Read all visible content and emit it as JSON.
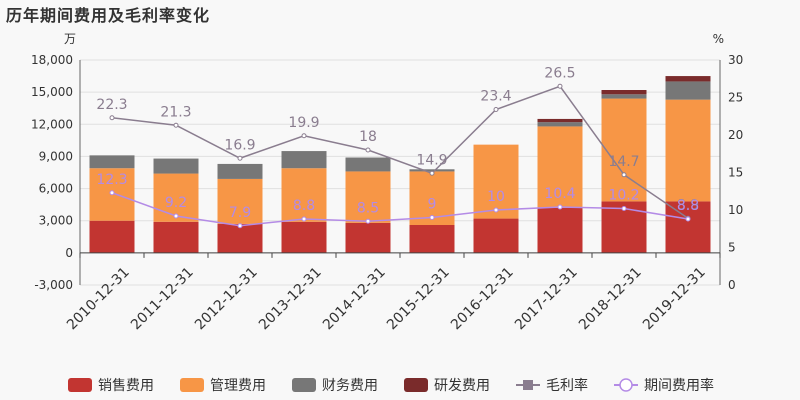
{
  "title": "历年期间费用及毛利率变化",
  "chart_data": {
    "type": "bar",
    "subtype": "stacked-bar-with-lines",
    "categories": [
      "2010-12-31",
      "2011-12-31",
      "2012-12-31",
      "2013-12-31",
      "2014-12-31",
      "2015-12-31",
      "2016-12-31",
      "2017-12-31",
      "2018-12-31",
      "2019-12-31"
    ],
    "y_left": {
      "unit": "万",
      "ylim": [
        -3000,
        18000
      ],
      "ticks": [
        -3000,
        0,
        3000,
        6000,
        9000,
        12000,
        15000,
        18000
      ]
    },
    "y_right": {
      "unit": "%",
      "ylim": [
        0,
        30
      ],
      "ticks": [
        0,
        5,
        10,
        15,
        20,
        25,
        30
      ]
    },
    "bar_series": [
      {
        "name": "销售费用",
        "color": "#c23531",
        "values": [
          3000,
          2900,
          2700,
          2900,
          2800,
          2600,
          3200,
          4200,
          4800,
          4800
        ]
      },
      {
        "name": "管理费用",
        "color": "#f79646",
        "values": [
          4900,
          4500,
          4200,
          5000,
          4800,
          5000,
          6900,
          7600,
          9600,
          9500
        ]
      },
      {
        "name": "财务费用",
        "color": "#777777",
        "values": [
          1200,
          1400,
          1400,
          1600,
          1300,
          200,
          0,
          400,
          400,
          1700
        ]
      },
      {
        "name": "研发费用",
        "color": "#7a2b2b",
        "values": [
          0,
          0,
          0,
          0,
          0,
          0,
          0,
          300,
          400,
          500
        ]
      }
    ],
    "line_series": [
      {
        "name": "毛利率",
        "color": "#8a7d8f",
        "values": [
          22.3,
          21.3,
          16.9,
          19.9,
          18,
          14.9,
          23.4,
          26.5,
          14.7,
          8.9
        ],
        "labels": [
          "22.3",
          "21.3",
          "16.9",
          "19.9",
          "18",
          "14.9",
          "23.4",
          "26.5",
          "14.7",
          "8.9"
        ]
      },
      {
        "name": "期间费用率",
        "color": "#b48be6",
        "values": [
          12.3,
          9.2,
          7.9,
          8.8,
          8.5,
          9,
          10,
          10.4,
          10.2,
          8.8
        ],
        "labels": [
          "12.3",
          "9.2",
          "7.9",
          "8.8",
          "8.5",
          "9",
          "10",
          "10.4",
          "10.2",
          "8.8"
        ]
      }
    ],
    "grid": true,
    "legend_position": "bottom"
  }
}
